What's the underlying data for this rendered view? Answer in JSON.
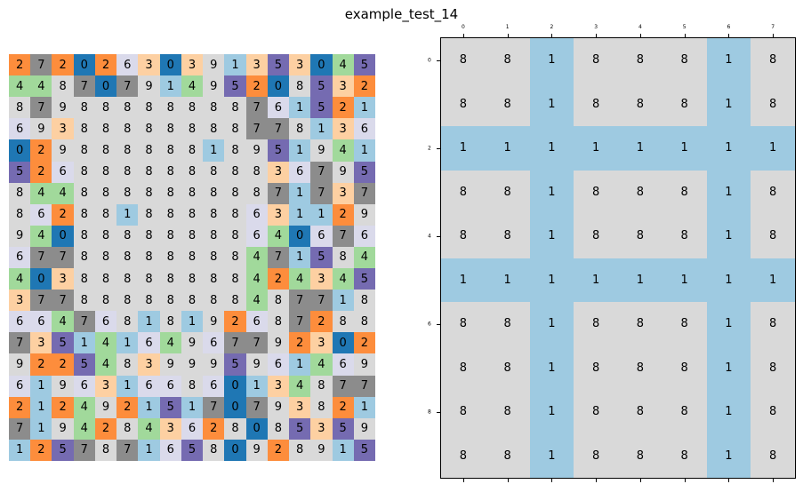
{
  "title": "example_test_14",
  "palette": {
    "0": "#1f77b4",
    "1": "#9ecae1",
    "2": "#fd8d3c",
    "3": "#fdd0a2",
    "4": "#a1d99b",
    "5": "#756bb1",
    "6": "#dadaeb",
    "7": "#8c8c8c",
    "8": "#d9d9d9",
    "9": "#d9d9d9"
  },
  "left_grid": [
    [
      2,
      7,
      2,
      0,
      2,
      6,
      3,
      0,
      3,
      9,
      1,
      3,
      5,
      3,
      0,
      4,
      5
    ],
    [
      4,
      4,
      8,
      7,
      0,
      7,
      9,
      1,
      4,
      9,
      5,
      2,
      0,
      8,
      5,
      3,
      2
    ],
    [
      8,
      7,
      9,
      8,
      8,
      8,
      8,
      8,
      8,
      8,
      8,
      7,
      6,
      1,
      5,
      2,
      1
    ],
    [
      6,
      9,
      3,
      8,
      8,
      8,
      8,
      8,
      8,
      8,
      8,
      7,
      7,
      8,
      1,
      3,
      6
    ],
    [
      0,
      2,
      9,
      8,
      8,
      8,
      8,
      8,
      8,
      1,
      8,
      9,
      5,
      1,
      9,
      4,
      1
    ],
    [
      5,
      2,
      6,
      8,
      8,
      8,
      8,
      8,
      8,
      8,
      8,
      8,
      3,
      6,
      7,
      9,
      5
    ],
    [
      8,
      4,
      4,
      8,
      8,
      8,
      8,
      8,
      8,
      8,
      8,
      8,
      7,
      1,
      7,
      3,
      7
    ],
    [
      8,
      6,
      2,
      8,
      8,
      1,
      8,
      8,
      8,
      8,
      8,
      6,
      3,
      1,
      1,
      2,
      9
    ],
    [
      9,
      4,
      0,
      8,
      8,
      8,
      8,
      8,
      8,
      8,
      8,
      6,
      4,
      0,
      6,
      7,
      6
    ],
    [
      6,
      7,
      7,
      8,
      8,
      8,
      8,
      8,
      8,
      8,
      8,
      4,
      7,
      1,
      5,
      8,
      4
    ],
    [
      4,
      0,
      3,
      8,
      8,
      8,
      8,
      8,
      8,
      8,
      8,
      4,
      2,
      4,
      3,
      4,
      5
    ],
    [
      3,
      7,
      7,
      8,
      8,
      8,
      8,
      8,
      8,
      8,
      8,
      4,
      8,
      7,
      7,
      1,
      8
    ],
    [
      6,
      6,
      4,
      7,
      6,
      8,
      1,
      8,
      1,
      9,
      2,
      6,
      8,
      7,
      2,
      8,
      8
    ],
    [
      7,
      3,
      5,
      1,
      4,
      1,
      6,
      4,
      9,
      6,
      7,
      7,
      9,
      2,
      3,
      0,
      2
    ],
    [
      9,
      2,
      2,
      5,
      4,
      8,
      3,
      9,
      9,
      9,
      5,
      9,
      6,
      1,
      4,
      6,
      9
    ],
    [
      6,
      1,
      9,
      6,
      3,
      1,
      6,
      6,
      8,
      6,
      0,
      1,
      3,
      4,
      8,
      7,
      7
    ],
    [
      2,
      1,
      2,
      4,
      9,
      2,
      1,
      5,
      1,
      7,
      0,
      7,
      9,
      3,
      8,
      2,
      1
    ],
    [
      7,
      1,
      9,
      4,
      2,
      8,
      4,
      3,
      6,
      2,
      8,
      0,
      8,
      5,
      3,
      5,
      9
    ],
    [
      1,
      2,
      5,
      7,
      8,
      7,
      1,
      6,
      5,
      8,
      0,
      9,
      2,
      8,
      9,
      1,
      5
    ]
  ],
  "right_grid": [
    [
      8,
      8,
      1,
      8,
      8,
      8,
      1,
      8
    ],
    [
      8,
      8,
      1,
      8,
      8,
      8,
      1,
      8
    ],
    [
      1,
      1,
      1,
      1,
      1,
      1,
      1,
      1
    ],
    [
      8,
      8,
      1,
      8,
      8,
      8,
      1,
      8
    ],
    [
      8,
      8,
      1,
      8,
      8,
      8,
      1,
      8
    ],
    [
      1,
      1,
      1,
      1,
      1,
      1,
      1,
      1
    ],
    [
      8,
      8,
      1,
      8,
      8,
      8,
      1,
      8
    ],
    [
      8,
      8,
      1,
      8,
      8,
      8,
      1,
      8
    ],
    [
      8,
      8,
      1,
      8,
      8,
      8,
      1,
      8
    ],
    [
      8,
      8,
      1,
      8,
      8,
      8,
      1,
      8
    ]
  ],
  "x_ticks": [
    "0",
    "1",
    "2",
    "3",
    "4",
    "5",
    "6",
    "7"
  ],
  "y_ticks": [
    "0",
    "2",
    "4",
    "6",
    "8"
  ]
}
